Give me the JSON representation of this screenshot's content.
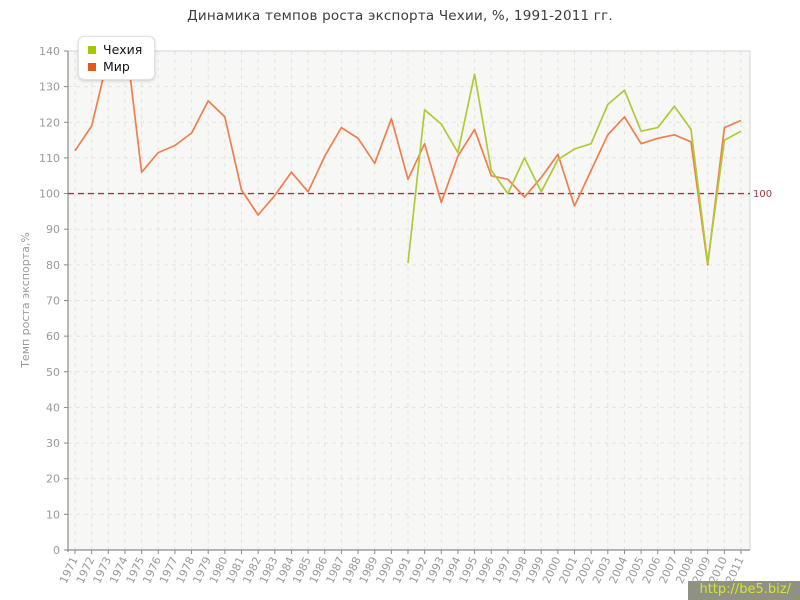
{
  "page": {
    "title": "Динамика темпов роста экспорта Чехии, %, 1991-2011 гг."
  },
  "watermark": {
    "text": "http://be5.biz/",
    "bg_color": "#8f9183",
    "text_color": "#d9e42c"
  },
  "chart_data": {
    "type": "line",
    "title": "Динамика темпов роста экспорта Чехии, %, 1991-2011 гг.",
    "xlabel": "",
    "ylabel": "Темп роста экспорта,%",
    "ylim": [
      0,
      140
    ],
    "ytick_step": 10,
    "grid": true,
    "legend_position": "top-left",
    "x": [
      1971,
      1972,
      1973,
      1974,
      1975,
      1976,
      1977,
      1978,
      1979,
      1980,
      1981,
      1982,
      1983,
      1984,
      1985,
      1986,
      1987,
      1988,
      1989,
      1990,
      1991,
      1992,
      1993,
      1994,
      1995,
      1996,
      1997,
      1998,
      1999,
      2000,
      2001,
      2002,
      2003,
      2004,
      2005,
      2006,
      2007,
      2008,
      2009,
      2010,
      2011
    ],
    "series": [
      {
        "name": "Чехия",
        "color": "#b2c937",
        "marker_color": "#a7c50e",
        "values": [
          null,
          null,
          null,
          null,
          null,
          null,
          null,
          null,
          null,
          null,
          null,
          null,
          null,
          null,
          null,
          null,
          null,
          null,
          null,
          null,
          80.5,
          123.5,
          119.5,
          111.5,
          133.5,
          106.5,
          100,
          110,
          100.5,
          109.5,
          112.5,
          114,
          125,
          129,
          117.5,
          118.5,
          124.5,
          118,
          80.5,
          115,
          117.5
        ]
      },
      {
        "name": "Мир",
        "color": "#ee7f4e",
        "marker_color": "#e25814",
        "values": [
          112,
          119,
          138.5,
          145,
          106,
          111.5,
          113.5,
          117,
          126,
          121.5,
          101,
          94,
          99.5,
          106,
          100.5,
          110.5,
          118.5,
          115.5,
          108.5,
          121,
          104,
          114,
          97.5,
          110.5,
          118,
          105,
          104,
          99,
          104.5,
          111,
          96.5,
          106.5,
          116.5,
          121.5,
          114,
          115.5,
          116.5,
          114.5,
          80,
          118.5,
          120.5
        ]
      }
    ],
    "reference_line": {
      "value": 100,
      "label": "100",
      "color": "#9c3745",
      "style": "dashed"
    },
    "colors": {
      "plot_bg": "#f7f7f5",
      "gridline": "#e3e3e0",
      "plot_border": "#d6d6d6",
      "axis": "#8a8a8a",
      "tick_label": "#9a9a9a"
    }
  }
}
